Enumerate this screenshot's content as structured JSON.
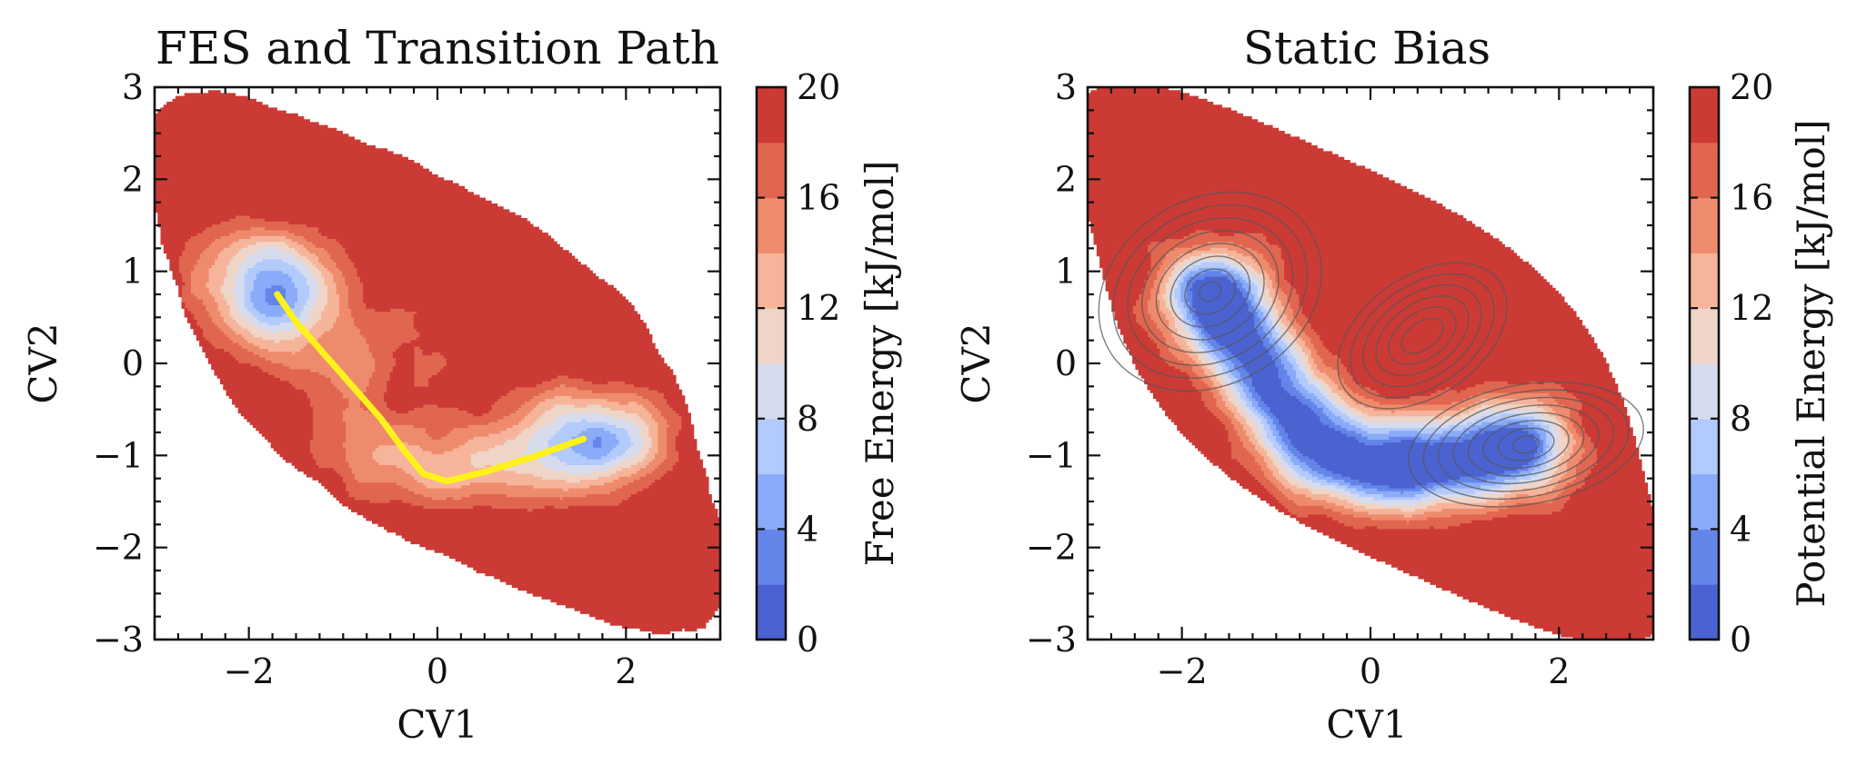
{
  "colors": {
    "levels": [
      "#4a63d1",
      "#6485e8",
      "#89abfa",
      "#b3cafc",
      "#d6dcee",
      "#eed5c8",
      "#f6b49a",
      "#ef8b6d",
      "#e06650",
      "#cc3a35"
    ],
    "path": "#fff21a",
    "contour_line": "#555555"
  },
  "chart_data": [
    {
      "type": "contour",
      "title": "FES and Transition Path",
      "xlabel": "CV1",
      "ylabel": "CV2",
      "xlim": [
        -3,
        3
      ],
      "ylim": [
        -3,
        3
      ],
      "xticks": [
        -2,
        0,
        2
      ],
      "yticks": [
        -3,
        -2,
        -1,
        0,
        1,
        2,
        3
      ],
      "xtick_labels": [
        "−2",
        "0",
        "2"
      ],
      "ytick_labels": [
        "−3",
        "−2",
        "−1",
        "0",
        "1",
        "2",
        "3"
      ],
      "colorbar": {
        "label": "Free Energy [kJ/mol]",
        "range": [
          0,
          20
        ],
        "levels": [
          0,
          2,
          4,
          6,
          8,
          10,
          12,
          14,
          16,
          18,
          20
        ],
        "tick_values": [
          0,
          4,
          8,
          12,
          16,
          20
        ],
        "tick_labels": [
          "0",
          "4",
          "8",
          "12",
          "16",
          "20"
        ]
      },
      "minima": [
        {
          "x": -1.75,
          "y": 0.8
        },
        {
          "x": 1.65,
          "y": -0.85
        }
      ],
      "transition_path": [
        {
          "x": -1.7,
          "y": 0.75
        },
        {
          "x": -1.5,
          "y": 0.45
        },
        {
          "x": -1.2,
          "y": 0.1
        },
        {
          "x": -0.9,
          "y": -0.25
        },
        {
          "x": -0.6,
          "y": -0.6
        },
        {
          "x": -0.35,
          "y": -0.95
        },
        {
          "x": -0.15,
          "y": -1.2
        },
        {
          "x": 0.1,
          "y": -1.28
        },
        {
          "x": 0.5,
          "y": -1.18
        },
        {
          "x": 1.0,
          "y": -1.02
        },
        {
          "x": 1.55,
          "y": -0.82
        }
      ]
    },
    {
      "type": "contour",
      "title": "Static Bias",
      "xlabel": "CV1",
      "ylabel": "CV2",
      "xlim": [
        -3,
        3
      ],
      "ylim": [
        -3,
        3
      ],
      "xticks": [
        -2,
        0,
        2
      ],
      "yticks": [
        -3,
        -2,
        -1,
        0,
        1,
        2,
        3
      ],
      "xtick_labels": [
        "−2",
        "0",
        "2"
      ],
      "ytick_labels": [
        "−3",
        "−2",
        "−1",
        "0",
        "1",
        "2",
        "3"
      ],
      "colorbar": {
        "label": "Potential Energy [kJ/mol]",
        "range": [
          0,
          20
        ],
        "levels": [
          0,
          2,
          4,
          6,
          8,
          10,
          12,
          14,
          16,
          18,
          20
        ],
        "tick_values": [
          0,
          4,
          8,
          12,
          16,
          20
        ],
        "tick_labels": [
          "0",
          "4",
          "8",
          "12",
          "16",
          "20"
        ]
      },
      "overlay": "contour lines"
    }
  ]
}
